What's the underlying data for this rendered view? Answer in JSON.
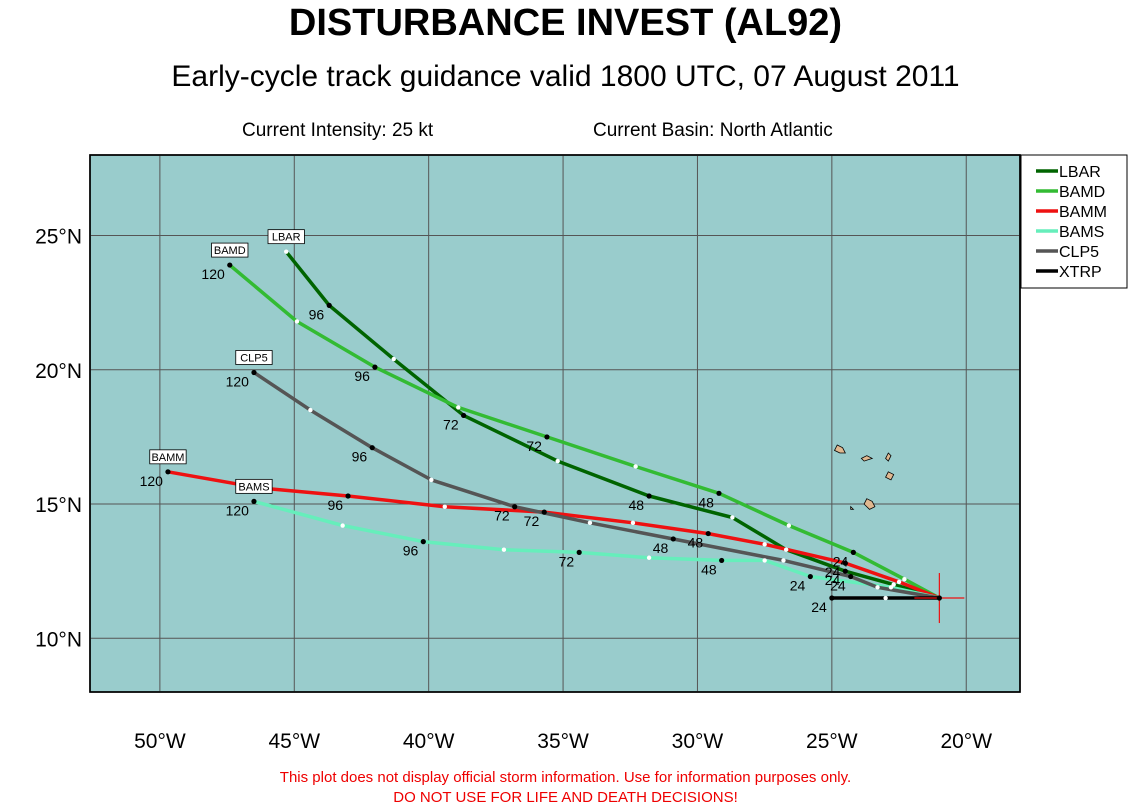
{
  "header": {
    "title": "DISTURBANCE INVEST (AL92)",
    "subtitle": "Early-cycle track guidance valid 1800 UTC, 07 August 2011",
    "intensity": "Current Intensity: 25 kt",
    "basin": "Current Basin: North Atlantic"
  },
  "footer": {
    "line1": "This plot does not display official storm information. Use for information purposes only.",
    "line2": "DO NOT USE FOR LIFE AND DEATH DECISIONS!"
  },
  "colors": {
    "ocean": "#99cccc",
    "land": "#e0b890",
    "grid": "#555555",
    "disclaimer": "#ee0000"
  },
  "map": {
    "lon_range": [
      -52.6,
      -18.0
    ],
    "lat_range": [
      8.0,
      28.0
    ],
    "lon_ticks": [
      -50,
      -45,
      -40,
      -35,
      -30,
      -25,
      -20
    ],
    "lon_tick_labels": [
      "50°W",
      "45°W",
      "40°W",
      "35°W",
      "30°W",
      "25°W",
      "20°W"
    ],
    "lat_ticks": [
      10,
      15,
      20,
      25
    ],
    "lat_tick_labels": [
      "10°N",
      "15°N",
      "20°N",
      "25°N"
    ],
    "storm_position": [
      -21.0,
      11.5
    ]
  },
  "chart_data": {
    "type": "line",
    "xlabel": "",
    "ylabel": "",
    "grid": true,
    "legend_position": "right-outside-top",
    "series": [
      {
        "name": "LBAR",
        "color": "#006400",
        "points": [
          [
            -21.0,
            11.5
          ],
          [
            -22.7,
            12.0
          ],
          [
            -24.5,
            12.5
          ],
          [
            -26.7,
            13.3
          ],
          [
            -28.7,
            14.5
          ],
          [
            -31.8,
            15.3
          ],
          [
            -35.2,
            16.6
          ],
          [
            -38.7,
            18.3
          ],
          [
            -41.3,
            20.4
          ],
          [
            -43.7,
            22.4
          ],
          [
            -45.3,
            24.4
          ]
        ],
        "tau_labels": [
          {
            "text": "24",
            "at": [
              -24.5,
              12.5
            ]
          },
          {
            "text": "48",
            "at": [
              -31.8,
              15.3
            ]
          },
          {
            "text": "72",
            "at": [
              -38.7,
              18.3
            ]
          },
          {
            "text": "96",
            "at": [
              -43.7,
              22.4
            ]
          }
        ],
        "end_label": "LBAR"
      },
      {
        "name": "BAMD",
        "color": "#33bb33",
        "points": [
          [
            -21.0,
            11.5
          ],
          [
            -22.3,
            12.2
          ],
          [
            -24.2,
            13.2
          ],
          [
            -26.6,
            14.2
          ],
          [
            -29.2,
            15.4
          ],
          [
            -32.3,
            16.4
          ],
          [
            -35.6,
            17.5
          ],
          [
            -38.9,
            18.6
          ],
          [
            -42.0,
            20.1
          ],
          [
            -44.9,
            21.8
          ],
          [
            -47.4,
            23.9
          ]
        ],
        "tau_labels": [
          {
            "text": "24",
            "at": [
              -24.2,
              13.2
            ]
          },
          {
            "text": "48",
            "at": [
              -29.2,
              15.4
            ]
          },
          {
            "text": "72",
            "at": [
              -35.6,
              17.5
            ]
          },
          {
            "text": "96",
            "at": [
              -42.0,
              20.1
            ]
          },
          {
            "text": "120",
            "at": [
              -47.4,
              23.9
            ]
          }
        ],
        "end_label": "BAMD"
      },
      {
        "name": "BAMM",
        "color": "#ee1111",
        "points": [
          [
            -21.0,
            11.5
          ],
          [
            -22.5,
            12.1
          ],
          [
            -24.5,
            12.8
          ],
          [
            -27.5,
            13.5
          ],
          [
            -29.6,
            13.9
          ],
          [
            -32.4,
            14.3
          ],
          [
            -35.7,
            14.7
          ],
          [
            -39.4,
            14.9
          ],
          [
            -43.0,
            15.3
          ],
          [
            -46.3,
            15.6
          ],
          [
            -49.7,
            16.2
          ]
        ],
        "tau_labels": [
          {
            "text": "24",
            "at": [
              -24.5,
              12.8
            ]
          },
          {
            "text": "48",
            "at": [
              -29.6,
              13.9
            ]
          },
          {
            "text": "72",
            "at": [
              -35.7,
              14.7
            ]
          },
          {
            "text": "96",
            "at": [
              -43.0,
              15.3
            ]
          },
          {
            "text": "120",
            "at": [
              -49.7,
              16.2
            ]
          }
        ],
        "end_label": "BAMM"
      },
      {
        "name": "BAMS",
        "color": "#66eebb",
        "points": [
          [
            -21.0,
            11.5
          ],
          [
            -22.8,
            11.9
          ],
          [
            -25.8,
            12.3
          ],
          [
            -27.5,
            12.9
          ],
          [
            -29.1,
            12.9
          ],
          [
            -31.8,
            13.0
          ],
          [
            -34.4,
            13.2
          ],
          [
            -37.2,
            13.3
          ],
          [
            -40.2,
            13.6
          ],
          [
            -43.2,
            14.2
          ],
          [
            -46.5,
            15.1
          ]
        ],
        "tau_labels": [
          {
            "text": "24",
            "at": [
              -25.8,
              12.3
            ]
          },
          {
            "text": "48",
            "at": [
              -29.1,
              12.9
            ]
          },
          {
            "text": "72",
            "at": [
              -34.4,
              13.2
            ]
          },
          {
            "text": "96",
            "at": [
              -40.2,
              13.6
            ]
          },
          {
            "text": "120",
            "at": [
              -46.5,
              15.1
            ]
          }
        ],
        "end_label": "BAMS"
      },
      {
        "name": "CLP5",
        "color": "#555555",
        "points": [
          [
            -21.0,
            11.5
          ],
          [
            -23.3,
            11.9
          ],
          [
            -24.3,
            12.3
          ],
          [
            -26.8,
            12.9
          ],
          [
            -30.9,
            13.7
          ],
          [
            -34.0,
            14.3
          ],
          [
            -36.8,
            14.9
          ],
          [
            -39.9,
            15.9
          ],
          [
            -42.1,
            17.1
          ],
          [
            -44.4,
            18.5
          ],
          [
            -46.5,
            19.9
          ]
        ],
        "tau_labels": [
          {
            "text": "24",
            "at": [
              -24.3,
              12.3
            ]
          },
          {
            "text": "48",
            "at": [
              -30.9,
              13.7
            ]
          },
          {
            "text": "72",
            "at": [
              -36.8,
              14.9
            ]
          },
          {
            "text": "96",
            "at": [
              -42.1,
              17.1
            ]
          },
          {
            "text": "120",
            "at": [
              -46.5,
              19.9
            ]
          }
        ],
        "end_label": "CLP5"
      },
      {
        "name": "XTRP",
        "color": "#000000",
        "points": [
          [
            -21.0,
            11.5
          ],
          [
            -23.0,
            11.5
          ],
          [
            -25.0,
            11.5
          ]
        ],
        "tau_labels": [
          {
            "text": "24",
            "at": [
              -25.0,
              11.5
            ]
          }
        ],
        "end_label": ""
      }
    ]
  },
  "islands": [
    [
      [
        -24.8,
        17.2
      ],
      [
        -24.6,
        17.1
      ],
      [
        -24.5,
        16.9
      ],
      [
        -24.7,
        16.9
      ],
      [
        -24.9,
        17.0
      ]
    ],
    [
      [
        -23.9,
        16.7
      ],
      [
        -23.7,
        16.8
      ],
      [
        -23.5,
        16.7
      ],
      [
        -23.8,
        16.6
      ]
    ],
    [
      [
        -22.9,
        16.9
      ],
      [
        -22.8,
        16.8
      ],
      [
        -22.9,
        16.6
      ],
      [
        -23.0,
        16.7
      ]
    ],
    [
      [
        -22.9,
        16.2
      ],
      [
        -22.7,
        16.1
      ],
      [
        -22.8,
        15.9
      ],
      [
        -23.0,
        16.0
      ]
    ],
    [
      [
        -23.7,
        15.2
      ],
      [
        -23.5,
        15.1
      ],
      [
        -23.4,
        14.9
      ],
      [
        -23.6,
        14.8
      ],
      [
        -23.8,
        15.0
      ]
    ],
    [
      [
        -24.3,
        14.9
      ],
      [
        -24.2,
        14.8
      ],
      [
        -24.3,
        14.8
      ]
    ]
  ]
}
